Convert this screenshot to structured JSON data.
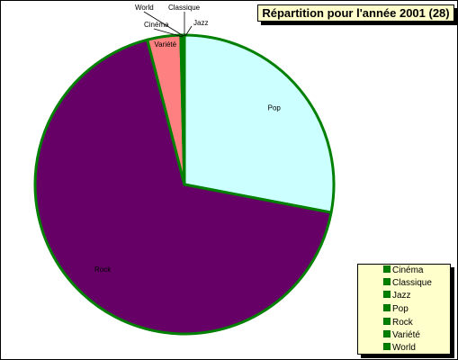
{
  "chart_data": {
    "type": "pie",
    "title": "Répartition pour l'année 2001 (28)",
    "slices": [
      {
        "label": "Pop",
        "value": 28.0,
        "color": "#ccffff"
      },
      {
        "label": "Rock",
        "value": 68.0,
        "color": "#660066"
      },
      {
        "label": "Variété",
        "value": 3.6,
        "color": "#ff8080"
      },
      {
        "label": "Cinéma",
        "value": 0.1,
        "color": "#ffffcc"
      },
      {
        "label": "World",
        "value": 0.1,
        "color": "#ffffcc"
      },
      {
        "label": "Classique",
        "value": 0.1,
        "color": "#ffffcc"
      },
      {
        "label": "Jazz",
        "value": 0.1,
        "color": "#ffffcc"
      }
    ],
    "legend": {
      "position": "bottom-right",
      "entries": [
        "Cinéma",
        "Classique",
        "Jazz",
        "Pop",
        "Rock",
        "Variété",
        "World"
      ]
    },
    "slice_border_color": "#008000"
  }
}
